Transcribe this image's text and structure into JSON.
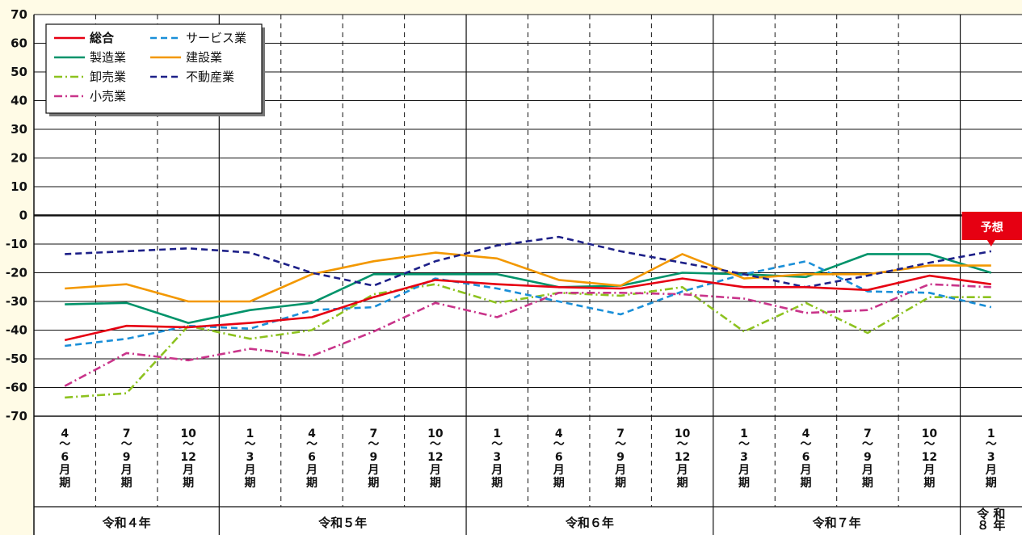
{
  "chart_data": {
    "type": "line",
    "ylim": [
      -70,
      70
    ],
    "ytick_step": 10,
    "grid": true,
    "legend_position": "top-left",
    "categories": [
      [
        "4",
        "～",
        "6",
        "月",
        "期"
      ],
      [
        "7",
        "～",
        "9",
        "月",
        "期"
      ],
      [
        "10",
        "～",
        "12",
        "月",
        "期"
      ],
      [
        "1",
        "～",
        "3",
        "月",
        "期"
      ],
      [
        "4",
        "～",
        "6",
        "月",
        "期"
      ],
      [
        "7",
        "～",
        "9",
        "月",
        "期"
      ],
      [
        "10",
        "～",
        "12",
        "月",
        "期"
      ],
      [
        "1",
        "～",
        "3",
        "月",
        "期"
      ],
      [
        "4",
        "～",
        "6",
        "月",
        "期"
      ],
      [
        "7",
        "～",
        "9",
        "月",
        "期"
      ],
      [
        "10",
        "～",
        "12",
        "月",
        "期"
      ],
      [
        "1",
        "～",
        "3",
        "月",
        "期"
      ],
      [
        "4",
        "～",
        "6",
        "月",
        "期"
      ],
      [
        "7",
        "～",
        "9",
        "月",
        "期"
      ],
      [
        "10",
        "～",
        "12",
        "月",
        "期"
      ],
      [
        "1",
        "～",
        "3",
        "月",
        "期"
      ]
    ],
    "year_groups": [
      {
        "label": "令和４年",
        "count": 3
      },
      {
        "label": "令和５年",
        "count": 4
      },
      {
        "label": "令和６年",
        "count": 4
      },
      {
        "label": "令和７年",
        "count": 4
      },
      {
        "label": "令和８年",
        "count": 1,
        "label_lines": [
          "令 和",
          "８ 年"
        ]
      }
    ],
    "forecast": {
      "label": "予想",
      "index": 15,
      "color": "#e60012"
    },
    "series": [
      {
        "name": "総合",
        "color": "#e60012",
        "dash": "solid",
        "values": [
          -43.5,
          -38.5,
          -39,
          -37.5,
          -35.5,
          -28.5,
          -22.5,
          -24,
          -25,
          -25.5,
          -22,
          -25,
          -25,
          -26,
          -21,
          -24
        ]
      },
      {
        "name": "製造業",
        "color": "#00936a",
        "dash": "solid",
        "values": [
          -31,
          -30.5,
          -37.5,
          -33,
          -30.5,
          -20.5,
          -20.5,
          -20.5,
          -25,
          -24.5,
          -20,
          -20.5,
          -21.5,
          -13.5,
          -13.5,
          -20
        ]
      },
      {
        "name": "卸売業",
        "color": "#8dc21f",
        "dash": "dashdot",
        "values": [
          -63.5,
          -62,
          -38.5,
          -43,
          -40,
          -27.5,
          -24,
          -30.5,
          -27,
          -28,
          -25,
          -40.5,
          -30.5,
          -41,
          -28.5,
          -28.5
        ]
      },
      {
        "name": "小売業",
        "color": "#c9348a",
        "dash": "dashdot",
        "values": [
          -59.5,
          -48,
          -50.5,
          -46.5,
          -49,
          -40.5,
          -30.5,
          -35.5,
          -27,
          -27,
          -27.5,
          -29,
          -34,
          -33,
          -24,
          -25
        ]
      },
      {
        "name": "サービス業",
        "color": "#1a8fd8",
        "dash": "dash",
        "values": [
          -45.5,
          -43,
          -38.5,
          -39.5,
          -33,
          -32,
          -22,
          -25.5,
          -30,
          -34.5,
          -26.5,
          -20.5,
          -16,
          -26.5,
          -27,
          -32
        ]
      },
      {
        "name": "建設業",
        "color": "#f39800",
        "dash": "solid",
        "values": [
          -25.5,
          -24,
          -30,
          -30,
          -20.5,
          -16,
          -13,
          -15,
          -22.5,
          -24.5,
          -13.5,
          -22,
          -20.5,
          -20.5,
          -17.5,
          -17.5
        ]
      },
      {
        "name": "不動産業",
        "color": "#1d2088",
        "dash": "dash",
        "values": [
          -13.5,
          -12.5,
          -11.5,
          -13,
          -20,
          -24.5,
          -16,
          -10.5,
          -7.5,
          -12.5,
          -16.5,
          -20.5,
          -25,
          -21,
          -16.5,
          -12.5
        ]
      }
    ]
  }
}
